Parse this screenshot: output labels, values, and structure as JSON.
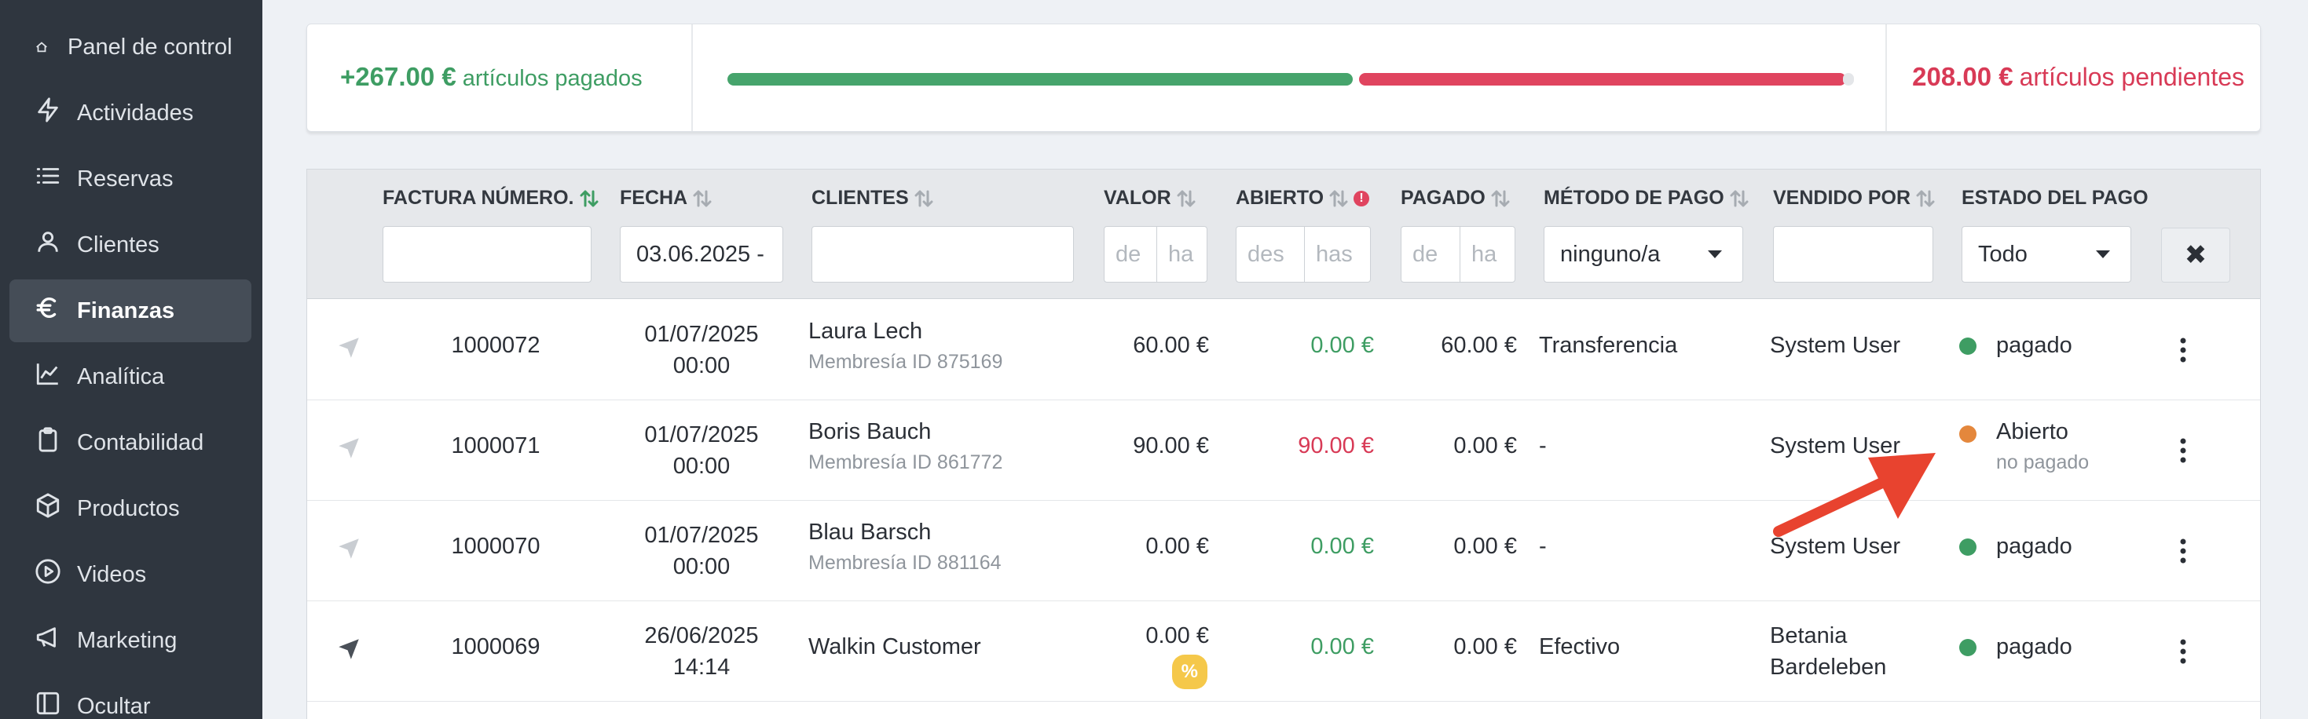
{
  "sidebar": {
    "items": [
      {
        "label": "Panel de control",
        "icon": "home-icon"
      },
      {
        "label": "Actividades",
        "icon": "lightning-icon"
      },
      {
        "label": "Reservas",
        "icon": "list-icon"
      },
      {
        "label": "Clientes",
        "icon": "user-icon"
      },
      {
        "label": "Finanzas",
        "icon": "euro-icon",
        "active": true
      },
      {
        "label": "Analítica",
        "icon": "chart-line-icon"
      },
      {
        "label": "Contabilidad",
        "icon": "clipboard-icon"
      },
      {
        "label": "Productos",
        "icon": "box-icon"
      },
      {
        "label": "Videos",
        "icon": "play-circle-icon"
      },
      {
        "label": "Marketing",
        "icon": "megaphone-icon"
      },
      {
        "label": "Ocultar",
        "icon": "sidebar-collapse-icon"
      }
    ]
  },
  "summary": {
    "paid_amount": "+267.00 €",
    "paid_label": "artículos pagados",
    "pending_amount": "208.00 €",
    "pending_label": "artículos pendientes",
    "paid_fraction": 0.56,
    "colors": {
      "paid": "#46a46c",
      "pending": "#e0445f"
    }
  },
  "table": {
    "headers": {
      "invoice": "FACTURA NÚMERO.",
      "date": "FECHA",
      "clients": "CLIENTES",
      "value": "VALOR",
      "open": "ABIERTO",
      "paid": "PAGADO",
      "payment_method": "MÉTODO DE PAGO",
      "sold_by": "VENDIDO POR",
      "payment_status": "ESTADO DEL PAGO"
    },
    "filters": {
      "date_value": "03.06.2025 -",
      "value_from": "de",
      "value_to": "ha",
      "open_from": "des",
      "open_to": "has",
      "paid_from": "de",
      "paid_to": "ha",
      "payment_method_selected": "ninguno/a",
      "status_selected": "Todo",
      "clear_label": "✖"
    },
    "rows": [
      {
        "invoice": "1000072",
        "date": "01/07/2025",
        "time": "00:00",
        "client": "Laura Lech",
        "membership": "Membresía ID 875169",
        "value": "60.00 €",
        "open": "0.00 €",
        "paid": "60.00 €",
        "method": "Transferencia",
        "sold_by": "System User",
        "sold_by_2": "",
        "status": "pagado",
        "status_sub": ""
      },
      {
        "invoice": "1000071",
        "date": "01/07/2025",
        "time": "00:00",
        "client": "Boris Bauch",
        "membership": "Membresía ID 861772",
        "value": "90.00 €",
        "open": "90.00 €",
        "paid": "0.00 €",
        "method": "-",
        "sold_by": "System User",
        "sold_by_2": "",
        "status": "Abierto",
        "status_sub": "no pagado"
      },
      {
        "invoice": "1000070",
        "date": "01/07/2025",
        "time": "00:00",
        "client": "Blau Barsch",
        "membership": "Membresía ID 881164",
        "value": "0.00 €",
        "open": "0.00 €",
        "paid": "0.00 €",
        "method": "-",
        "sold_by": "System User",
        "sold_by_2": "",
        "status": "pagado",
        "status_sub": ""
      },
      {
        "invoice": "1000069",
        "date": "26/06/2025",
        "time": "14:14",
        "client": "Walkin Customer",
        "membership": "",
        "value": "0.00 €",
        "badge": "%",
        "open": "0.00 €",
        "paid": "0.00 €",
        "method": "Efectivo",
        "sold_by": "Betania",
        "sold_by_2": "Bardeleben",
        "status": "pagado",
        "status_sub": ""
      }
    ]
  }
}
